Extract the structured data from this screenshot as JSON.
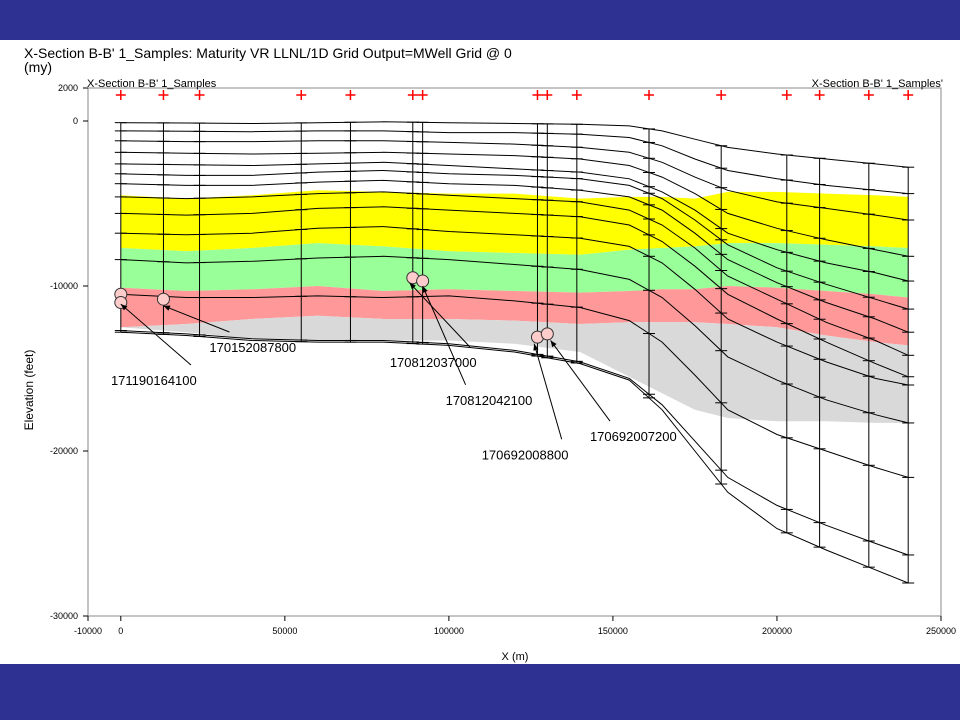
{
  "slide": {
    "background_color": "#2e3192"
  },
  "figure": {
    "title_line1": "X-Section B-B' 1_Samples: Maturity VR LLNL/1D Grid Output=MWell Grid @ 0",
    "title_line2": "(my)",
    "section_label_left": "X-Section B-B' 1_Samples",
    "section_label_right": "X-Section B-B' 1_Samples'"
  },
  "chart_data": {
    "type": "scatter",
    "xlabel": "X (m)",
    "ylabel": "Elevation (feet)",
    "xlim": [
      -10000,
      250000
    ],
    "ylim": [
      -30000,
      2000
    ],
    "x_ticks": [
      -10000,
      0,
      50000,
      100000,
      150000,
      200000,
      250000
    ],
    "x_tick_labels": [
      "-10000",
      "0",
      "50000",
      "100000",
      "150000",
      "200000",
      "250000"
    ],
    "y_ticks": [
      2000,
      0,
      -10000,
      -20000,
      -30000
    ],
    "y_tick_labels": [
      "2000",
      "0",
      "-10000",
      "-20000",
      "-30000"
    ],
    "grid": false,
    "well_x": [
      0,
      13000,
      24000,
      55000,
      70000,
      89000,
      92000,
      127000,
      130000,
      139000,
      161000,
      183000,
      203000,
      213000,
      228000,
      240000
    ],
    "well_marker_color": "#ff0000",
    "surface_x": [
      0,
      20000,
      40000,
      60000,
      80000,
      100000,
      120000,
      140000,
      155000,
      165000,
      175000,
      185000,
      200000,
      215000,
      230000,
      240000
    ],
    "maturity_bands": [
      {
        "name": "yellow",
        "color": "#ffff00",
        "top": [
          -4500,
          -4700,
          -4500,
          -4200,
          -4300,
          -4400,
          -4400,
          -4700,
          -4600,
          -4600,
          -4700,
          -4300,
          -4300,
          -4400,
          -4500,
          -4600
        ],
        "base": [
          -7700,
          -7900,
          -7700,
          -7400,
          -7600,
          -7900,
          -8000,
          -8100,
          -7800,
          -7700,
          -7600,
          -7400,
          -7400,
          -7500,
          -7600,
          -7700
        ]
      },
      {
        "name": "green",
        "color": "#99ff99",
        "top": [
          -7700,
          -7900,
          -7700,
          -7400,
          -7600,
          -7900,
          -8000,
          -8100,
          -7800,
          -7700,
          -7600,
          -7400,
          -7400,
          -7500,
          -7600,
          -7700
        ],
        "base": [
          -10100,
          -10300,
          -10200,
          -10000,
          -10300,
          -10200,
          -10300,
          -10400,
          -10300,
          -10200,
          -10200,
          -10000,
          -10100,
          -10300,
          -10500,
          -10700
        ]
      },
      {
        "name": "pink",
        "color": "#ff9999",
        "top": [
          -10100,
          -10300,
          -10200,
          -10000,
          -10300,
          -10200,
          -10300,
          -10400,
          -10300,
          -10200,
          -10200,
          -10000,
          -10100,
          -10300,
          -10500,
          -10700
        ],
        "base": [
          -12500,
          -12300,
          -12000,
          -11800,
          -12000,
          -12000,
          -12100,
          -12300,
          -12200,
          -12200,
          -12200,
          -12300,
          -12500,
          -13000,
          -13400,
          -13600
        ]
      },
      {
        "name": "gray",
        "color": "#d9d9d9",
        "top": [
          -12500,
          -12300,
          -12000,
          -11800,
          -12000,
          -12000,
          -12100,
          -12300,
          -12200,
          -12200,
          -12200,
          -12300,
          -12500,
          -13000,
          -13400,
          -13600
        ],
        "base": [
          -12500,
          -12800,
          -13200,
          -13300,
          -13300,
          -13300,
          -13500,
          -14000,
          -15500,
          -16500,
          -17500,
          -18000,
          -18200,
          -18200,
          -18300,
          -18300
        ]
      }
    ],
    "horizons": [
      [
        -100,
        -120,
        -150,
        -100,
        -50,
        -100,
        -150,
        -200,
        -300,
        -600,
        -1100,
        -1600,
        -2000,
        -2300,
        -2600,
        -2800
      ],
      [
        -600,
        -620,
        -650,
        -600,
        -600,
        -700,
        -700,
        -800,
        -1000,
        -1500,
        -2300,
        -3000,
        -3500,
        -3900,
        -4200,
        -4400
      ],
      [
        -1200,
        -1250,
        -1250,
        -1200,
        -1200,
        -1300,
        -1400,
        -1600,
        -1900,
        -2500,
        -3400,
        -4200,
        -4900,
        -5300,
        -5700,
        -6000
      ],
      [
        -1900,
        -1950,
        -2000,
        -1950,
        -1900,
        -2000,
        -2100,
        -2300,
        -2700,
        -3400,
        -4400,
        -5600,
        -6500,
        -7200,
        -7800,
        -8200
      ],
      [
        -2600,
        -2650,
        -2700,
        -2600,
        -2500,
        -2700,
        -2900,
        -3100,
        -3500,
        -4300,
        -5400,
        -6800,
        -7800,
        -8600,
        -9200,
        -9700
      ],
      [
        -3200,
        -3300,
        -3300,
        -3100,
        -3000,
        -3200,
        -3300,
        -3500,
        -3900,
        -4700,
        -6000,
        -7500,
        -8900,
        -9900,
        -10800,
        -11400
      ],
      [
        -3800,
        -3900,
        -3900,
        -3700,
        -3600,
        -3800,
        -3900,
        -4200,
        -4600,
        -5400,
        -6800,
        -8400,
        -9800,
        -11000,
        -12000,
        -12800
      ],
      [
        -4600,
        -4700,
        -4600,
        -4400,
        -4300,
        -4500,
        -4700,
        -4900,
        -5400,
        -6300,
        -7700,
        -9400,
        -10800,
        -12200,
        -13300,
        -14200
      ],
      [
        -5600,
        -5700,
        -5600,
        -5300,
        -5200,
        -5400,
        -5600,
        -5800,
        -6300,
        -7300,
        -8800,
        -10500,
        -12000,
        -13400,
        -14700,
        -15500
      ],
      [
        -6800,
        -6900,
        -6800,
        -6500,
        -6400,
        -6700,
        -6900,
        -7100,
        -7600,
        -8600,
        -10200,
        -12000,
        -13400,
        -14600,
        -15600,
        -16000
      ],
      [
        -8400,
        -8600,
        -8500,
        -8300,
        -8200,
        -8400,
        -8700,
        -9000,
        -9600,
        -10700,
        -12400,
        -14300,
        -15700,
        -16900,
        -17800,
        -18300
      ],
      [
        -10500,
        -10700,
        -10700,
        -10600,
        -10700,
        -10600,
        -10900,
        -11300,
        -12100,
        -13400,
        -15400,
        -17500,
        -19000,
        -20000,
        -21000,
        -21600
      ],
      [
        -12700,
        -12900,
        -13200,
        -13300,
        -13300,
        -13500,
        -13900,
        -14600,
        -15600,
        -17200,
        -19400,
        -21600,
        -23300,
        -24500,
        -25600,
        -26300
      ],
      [
        -12800,
        -13000,
        -13300,
        -13400,
        -13400,
        -13600,
        -14000,
        -14700,
        -15700,
        -17500,
        -20000,
        -22500,
        -24700,
        -26000,
        -27200,
        -28000
      ]
    ],
    "well_tick_depths": [
      -200,
      -700,
      -1300,
      -2000,
      -2700,
      -3300,
      -3900,
      -4700,
      -5700,
      -6900,
      -8500,
      -10600,
      -12800
    ],
    "samples": [
      {
        "label": "171190164100",
        "x": 0,
        "y": -10500
      },
      {
        "label": "171190164100",
        "x": 0,
        "y": -11000
      },
      {
        "label": "170152087800",
        "x": 13000,
        "y": -10800
      },
      {
        "label": "170812037000",
        "x": 89000,
        "y": -9500
      },
      {
        "label": "170812042100",
        "x": 92000,
        "y": -9700
      },
      {
        "label": "170692008800",
        "x": 127000,
        "y": -13100
      },
      {
        "label": "170692007200",
        "x": 130000,
        "y": -12900
      }
    ],
    "annotations": [
      {
        "text": "171190164100",
        "x": -3000,
        "y": -16000,
        "target_x": 0,
        "target_y": -11100
      },
      {
        "text": "170152087800",
        "x": 27000,
        "y": -14000,
        "target_x": 13000,
        "target_y": -11200
      },
      {
        "text": "170812037000",
        "x": 82000,
        "y": -14900,
        "target_x": 88000,
        "target_y": -9800
      },
      {
        "text": "170812042100",
        "x": 99000,
        "y": -17200,
        "target_x": 92000,
        "target_y": -10000
      },
      {
        "text": "170692008800",
        "x": 110000,
        "y": -20500,
        "target_x": 126000,
        "target_y": -13500
      },
      {
        "text": "170692007200",
        "x": 143000,
        "y": -19400,
        "target_x": 131000,
        "target_y": -13300
      }
    ]
  }
}
